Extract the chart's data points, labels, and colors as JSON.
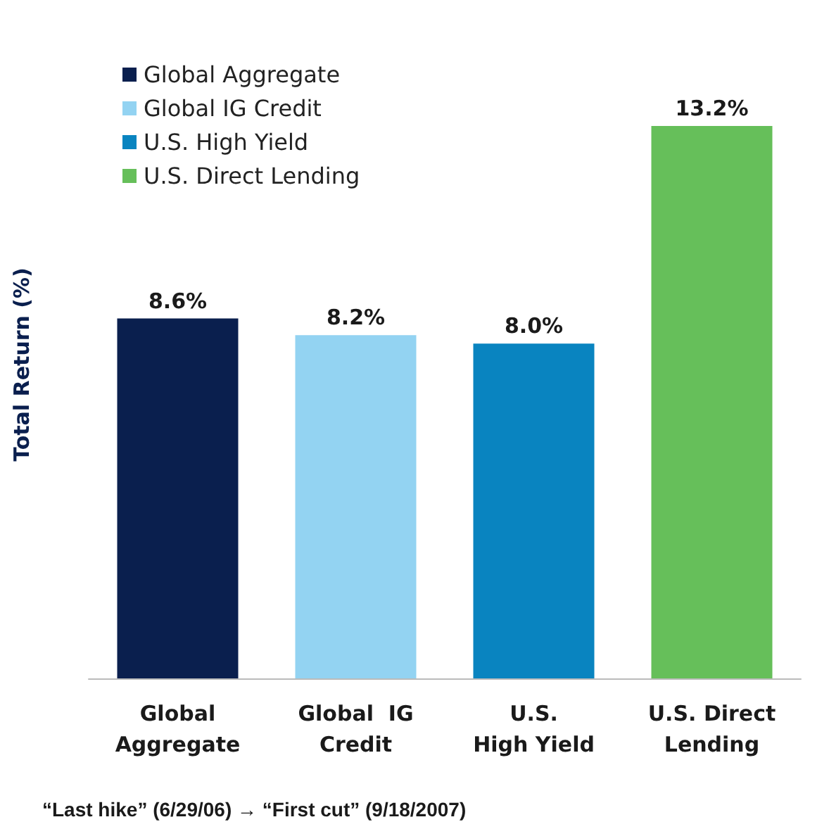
{
  "chart_data": {
    "type": "bar",
    "ylabel": "Total Return (%)",
    "categories": [
      "Global\nAggregate",
      "Global  IG\nCredit",
      "U.S.\nHigh Yield",
      "U.S. Direct\nLending"
    ],
    "series": [
      {
        "name": "Global Aggregate",
        "color": "#0a1f4e",
        "values": [
          8.6,
          null,
          null,
          null
        ],
        "value_labels": [
          "8.6%",
          null,
          null,
          null
        ]
      },
      {
        "name": "Global IG Credit",
        "color": "#93d3f2",
        "values": [
          null,
          8.2,
          null,
          null
        ],
        "value_labels": [
          null,
          "8.2%",
          null,
          null
        ]
      },
      {
        "name": "U.S. High Yield",
        "color": "#0984c0",
        "values": [
          null,
          null,
          8.0,
          null
        ],
        "value_labels": [
          null,
          null,
          "8.0%",
          null
        ]
      },
      {
        "name": "U.S. Direct Lending",
        "color": "#66bf5a",
        "values": [
          null,
          null,
          null,
          13.2
        ],
        "value_labels": [
          null,
          null,
          null,
          "13.2%"
        ]
      }
    ],
    "legend": "top left",
    "tick_labels": "x",
    "grid": false,
    "annotations": [
      "“Last hike” (6/29/06) → “First cut” (9/18/2007)"
    ]
  }
}
